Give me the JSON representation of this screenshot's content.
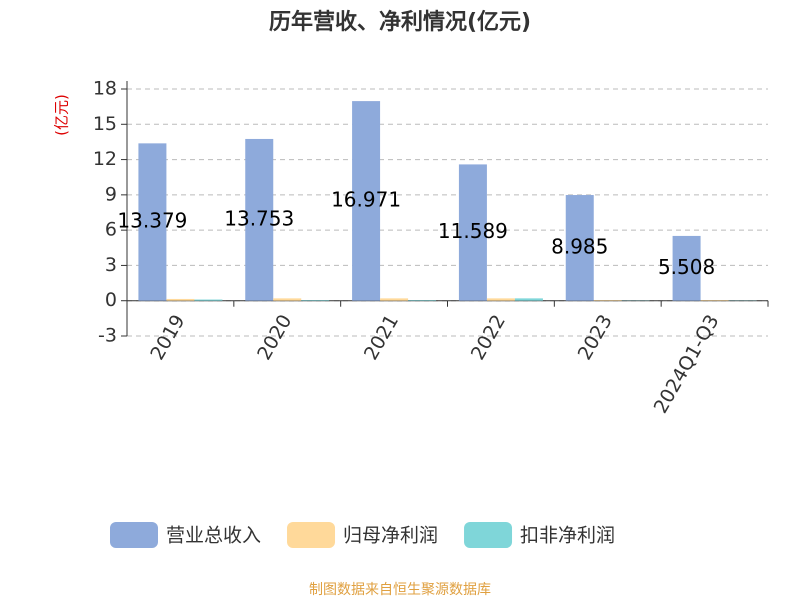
{
  "chart_data": {
    "type": "bar",
    "title": "历年营收、净利情况(亿元)",
    "y_label": "(亿元)",
    "categories": [
      "2019",
      "2020",
      "2021",
      "2022",
      "2023",
      "2024Q1-Q3"
    ],
    "series": [
      {
        "name": "营业总收入",
        "color": "#8eaadb",
        "values": [
          13.379,
          13.753,
          16.971,
          11.589,
          8.985,
          5.508
        ]
      },
      {
        "name": "归母净利润",
        "color": "#ffd99a",
        "values": [
          0.15,
          0.2,
          0.2,
          0.2,
          0.05,
          0.05
        ]
      },
      {
        "name": "扣非净利润",
        "color": "#7fd6d9",
        "values": [
          0.1,
          0.05,
          0.05,
          0.2,
          0.02,
          0.02
        ]
      }
    ],
    "ylim": [
      -3,
      18
    ],
    "yticks": [
      -3,
      0,
      3,
      6,
      9,
      12,
      15,
      18
    ],
    "grid": true,
    "source": "制图数据来自恒生聚源数据库"
  }
}
